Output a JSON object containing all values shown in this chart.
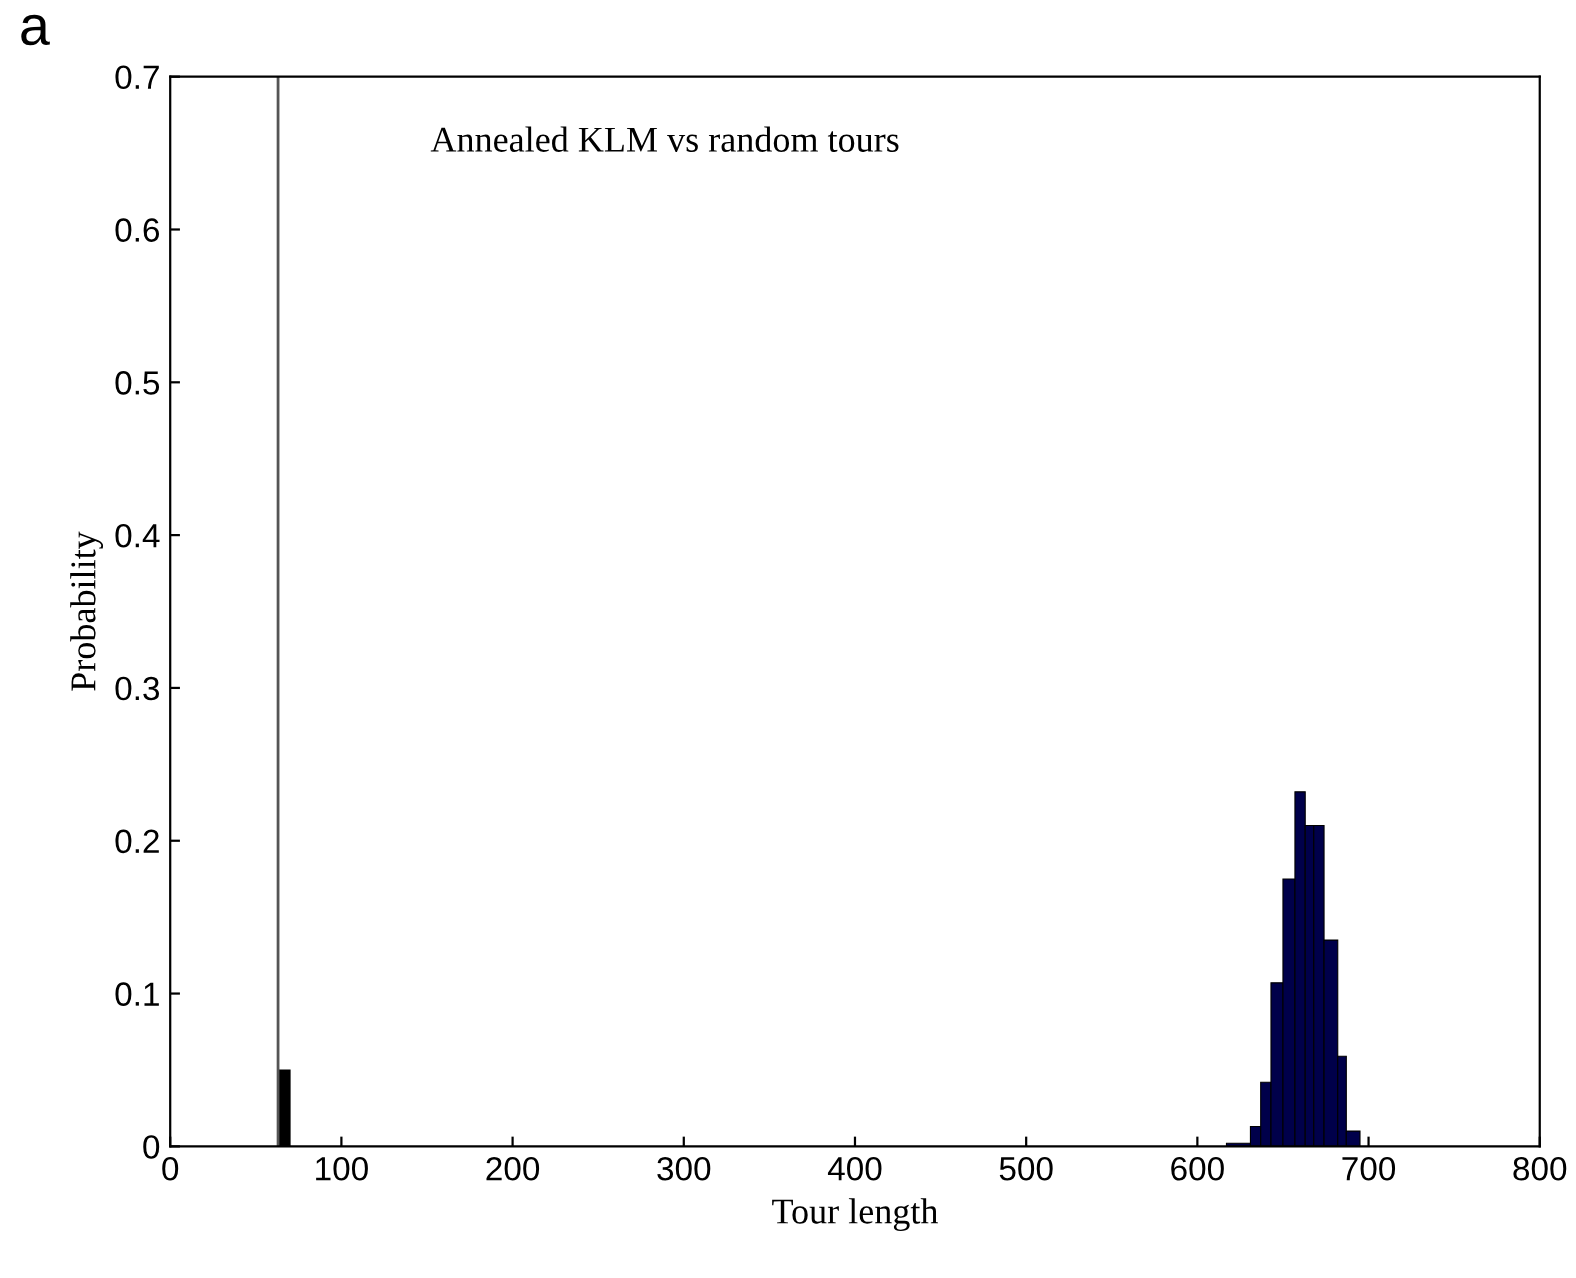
{
  "chart_data": {
    "type": "histogram",
    "xlabel": "Tour length",
    "ylabel": "Probability",
    "annotations": [
      "a",
      "Annealed KLM vs random tours"
    ],
    "bins": [
      63,
      70,
      617,
      631,
      637,
      643,
      650,
      657,
      663,
      668,
      674,
      682,
      687,
      695
    ],
    "values": [
      0.05,
      0,
      0.002,
      0.013,
      0.042,
      0.107,
      0.175,
      0.232,
      0.21,
      0.21,
      0.135,
      0.059,
      0.01
    ],
    "colors": [
      "#000000",
      "#000000",
      "#00004a",
      "#00004a",
      "#00004a",
      "#00004a",
      "#00004a",
      "#00004a",
      "#00004a",
      "#00004a",
      "#00004a",
      "#00004a",
      "#00004a"
    ],
    "ref_lines": [
      {
        "axis": "x",
        "value": 63,
        "color": "#555555"
      }
    ],
    "xlim": [
      0,
      800
    ],
    "ylim": [
      0,
      0.7
    ],
    "xticks": [
      0,
      100,
      200,
      300,
      400,
      500,
      600,
      700,
      800
    ],
    "yticks": [
      0,
      0.1,
      0.2,
      0.3,
      0.4,
      0.5,
      0.6,
      0.7
    ],
    "grid": false
  }
}
